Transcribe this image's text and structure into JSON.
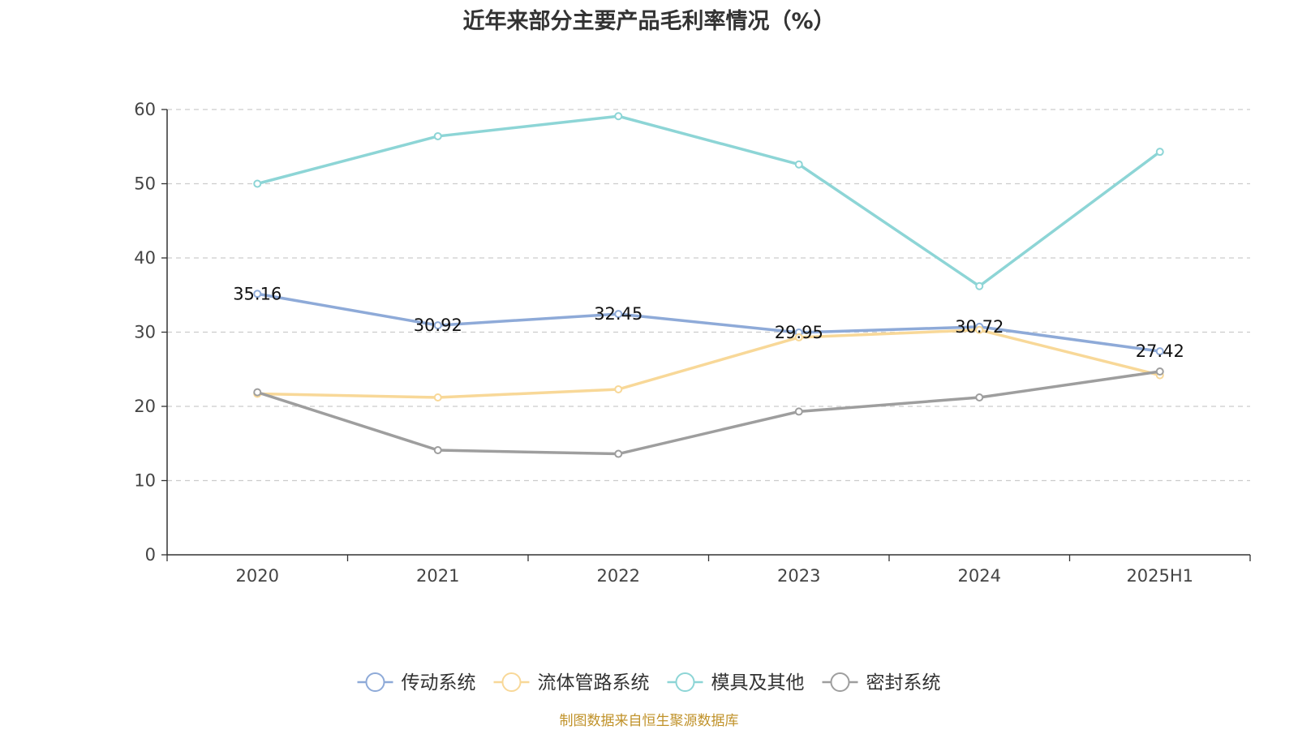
{
  "chart_data": {
    "type": "line",
    "title": "近年来部分主要产品毛利率情况（%）",
    "categories": [
      "2020",
      "2021",
      "2022",
      "2023",
      "2024",
      "2025H1"
    ],
    "ylim": [
      0,
      60
    ],
    "yticks": [
      0,
      10,
      20,
      30,
      40,
      50,
      60
    ],
    "grid": true,
    "legend_position": "bottom",
    "series": [
      {
        "name": "传动系统",
        "color": "#8eaad8",
        "values": [
          35.16,
          30.92,
          32.45,
          29.95,
          30.72,
          27.42
        ],
        "show_labels": true
      },
      {
        "name": "流体管路系统",
        "color": "#f8d898",
        "values": [
          21.7,
          21.2,
          22.3,
          29.3,
          30.3,
          24.2
        ],
        "show_labels": false
      },
      {
        "name": "模具及其他",
        "color": "#8dd5d6",
        "values": [
          50.0,
          56.4,
          59.1,
          52.6,
          36.2,
          54.3
        ],
        "show_labels": false
      },
      {
        "name": "密封系统",
        "color": "#9e9e9e",
        "values": [
          21.9,
          14.1,
          13.6,
          19.3,
          21.2,
          24.7
        ],
        "show_labels": false
      }
    ]
  },
  "footer": {
    "source_note": "制图数据来自恒生聚源数据库"
  }
}
